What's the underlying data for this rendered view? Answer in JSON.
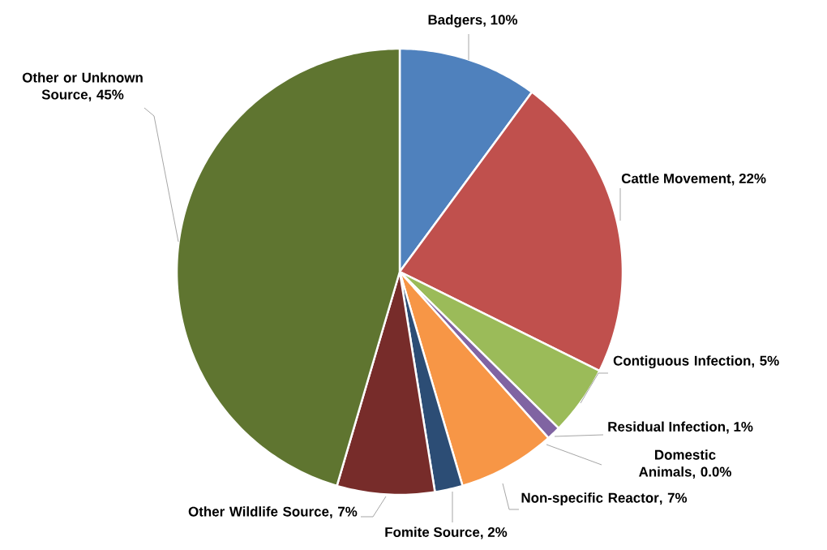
{
  "chart_data": {
    "type": "pie",
    "categories": [
      "Badgers",
      "Cattle Movement",
      "Contiguous Infection",
      "Residual Infection",
      "Domestic Animals",
      "Non-specific Reactor",
      "Fomite Source",
      "Other Wildlife Source",
      "Other or Unknown Source"
    ],
    "values": [
      10,
      22,
      5,
      1,
      0.0,
      7,
      2,
      7,
      45
    ],
    "value_labels": [
      ", 10%",
      ", 22%",
      ", 5%",
      ", 1%",
      ", 0.0%",
      ", 7%",
      ", 2%",
      ", 7%",
      ", 45%"
    ],
    "colors": [
      "#4f81bd",
      "#c0504d",
      "#9bbb59",
      "#8064a2",
      "#4bacc6",
      "#f79646",
      "#2c4d75",
      "#772c2a",
      "#5f7530"
    ]
  }
}
